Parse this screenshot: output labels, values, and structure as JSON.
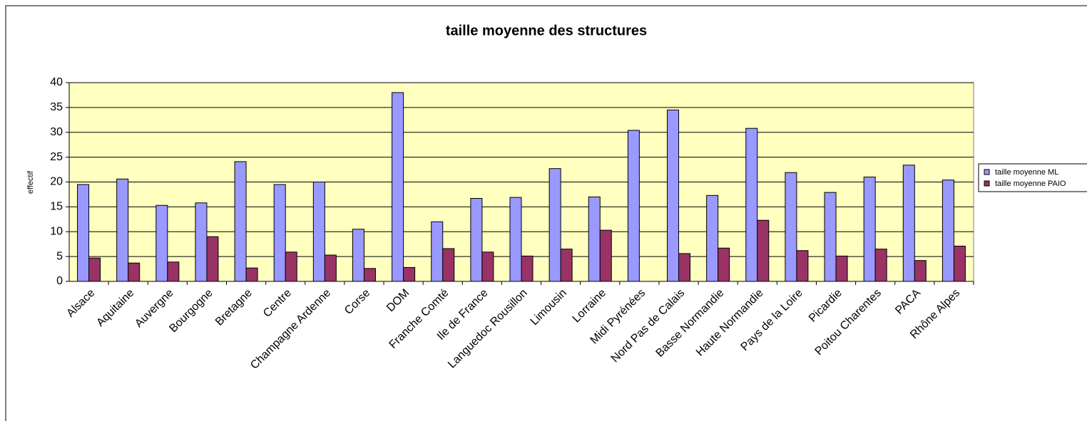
{
  "chart_data": {
    "type": "bar",
    "title": "taille moyenne des structures",
    "y_label": "effectif",
    "categories": [
      "Alsace",
      "Aquitaine",
      "Auvergne",
      "Bourgogne",
      "Bretagne",
      "Centre",
      "Champagne Ardenne",
      "Corse",
      "DOM",
      "Franche Comté",
      "Ile de France",
      "Languedoc Rousillon",
      "Limousin",
      "Lorraine",
      "Midi Pyrénées",
      "Nord Pas de Calais",
      "Basse Normandie",
      "Haute Normandie",
      "Pays de la Loire",
      "Picardie",
      "Poitou Charentes",
      "PACA",
      "Rhône Alpes"
    ],
    "series": [
      {
        "name": "taille moyenne ML",
        "color": "#9999ff",
        "values": [
          19.5,
          20.6,
          15.3,
          15.8,
          24.1,
          19.5,
          20,
          10.5,
          38,
          12,
          16.7,
          16.9,
          22.7,
          17,
          30.4,
          34.5,
          17.3,
          30.8,
          21.9,
          17.9,
          21,
          23.4,
          20.4
        ]
      },
      {
        "name": "taille moyenne PAIO",
        "color": "#993366",
        "values": [
          4.7,
          3.7,
          3.9,
          9,
          2.7,
          5.9,
          5.3,
          2.6,
          2.8,
          6.6,
          5.9,
          5.1,
          6.5,
          10.3,
          null,
          5.6,
          6.7,
          12.3,
          6.2,
          5.1,
          6.5,
          4.2,
          7.1
        ]
      }
    ],
    "ylim": [
      0,
      40
    ],
    "yticks": [
      0,
      5,
      10,
      15,
      20,
      25,
      30,
      35,
      40
    ],
    "grid": true,
    "plot_background": "#ffffc0",
    "legend": "right"
  }
}
